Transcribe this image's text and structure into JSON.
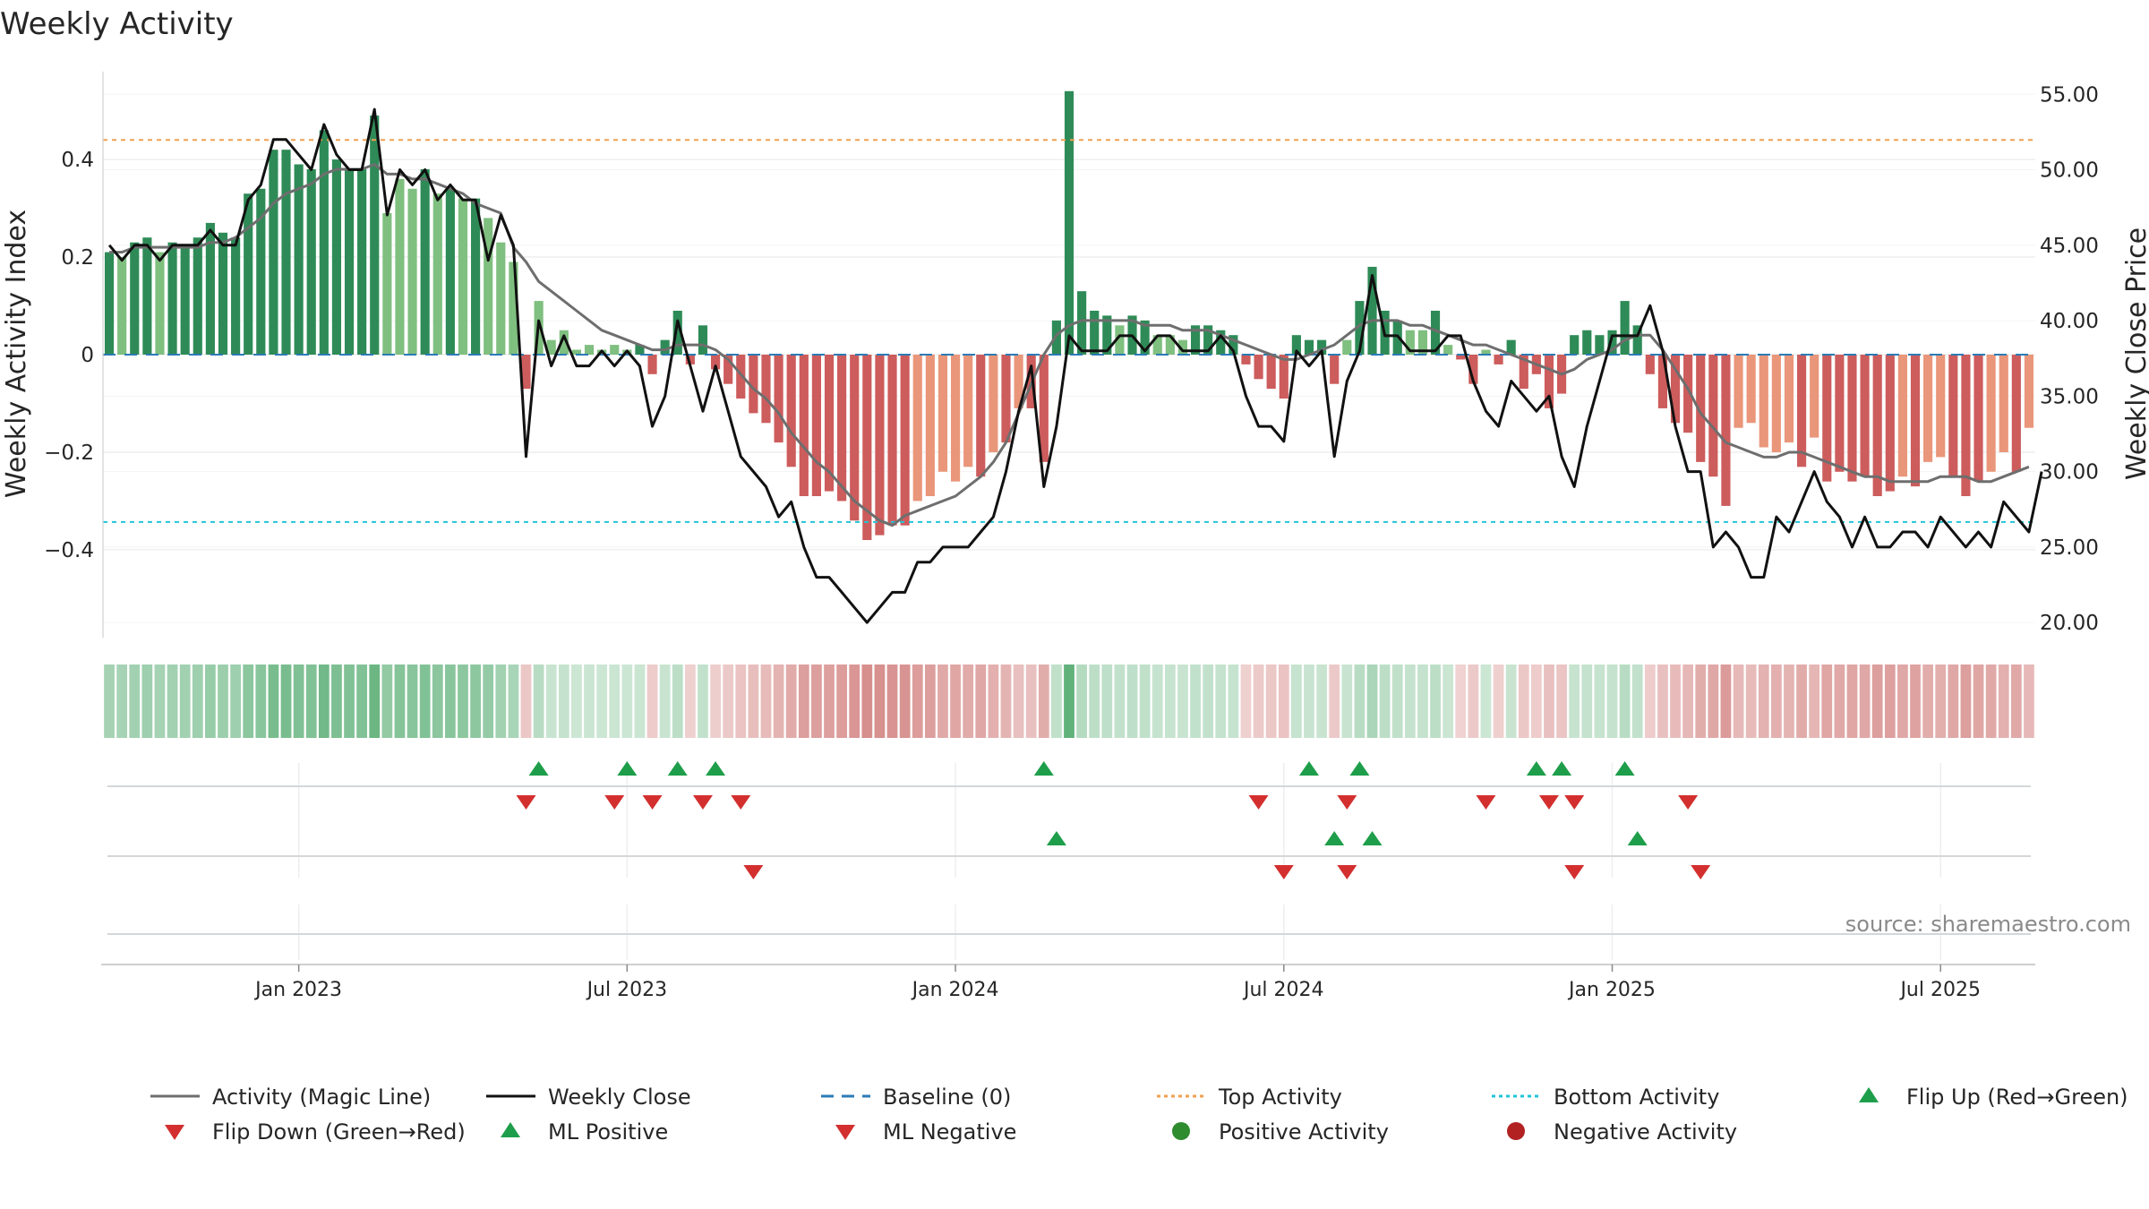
{
  "chart_data": {
    "type": "bar",
    "title": "Weekly Activity",
    "ylabel_left": "Weekly Activity Index",
    "ylabel_right": "Weekly Close Price",
    "source": "source: sharemaestro.com",
    "ylim_left": [
      -0.58,
      0.58
    ],
    "ylim_right": [
      19.0,
      56.5
    ],
    "left_ticks": [
      {
        "value": 0.4,
        "label": "0.4"
      },
      {
        "value": 0.2,
        "label": "0.2"
      },
      {
        "value": 0,
        "label": "0"
      },
      {
        "value": -0.2,
        "label": "−0.2"
      },
      {
        "value": -0.4,
        "label": "−0.4"
      }
    ],
    "right_ticks": [
      {
        "value": 55,
        "label": "55.00"
      },
      {
        "value": 50,
        "label": "50.00"
      },
      {
        "value": 45,
        "label": "45.00"
      },
      {
        "value": 40,
        "label": "40.00"
      },
      {
        "value": 35,
        "label": "35.00"
      },
      {
        "value": 30,
        "label": "30.00"
      },
      {
        "value": 25,
        "label": "25.00"
      },
      {
        "value": 20,
        "label": "20.00"
      }
    ],
    "x_ticks": [
      {
        "label": "Jan 2023",
        "week": 15
      },
      {
        "label": "Jul 2023",
        "week": 41
      },
      {
        "label": "Jan 2024",
        "week": 67
      },
      {
        "label": "Jul 2024",
        "week": 93
      },
      {
        "label": "Jan 2025",
        "week": 119
      },
      {
        "label": "Jul 2025",
        "week": 145
      }
    ],
    "top_activity": 0.44,
    "bottom_activity": -0.343,
    "baseline": 0,
    "activity": [
      0.21,
      0.2,
      0.23,
      0.24,
      0.21,
      0.23,
      0.22,
      0.24,
      0.27,
      0.25,
      0.24,
      0.33,
      0.34,
      0.42,
      0.42,
      0.39,
      0.38,
      0.46,
      0.4,
      0.38,
      0.38,
      0.49,
      0.29,
      0.36,
      0.34,
      0.38,
      0.33,
      0.34,
      0.32,
      0.32,
      0.28,
      0.23,
      0.19,
      -0.07,
      0.11,
      0.03,
      0.05,
      0.01,
      0.02,
      0.01,
      0.02,
      0.01,
      0.02,
      -0.04,
      0.03,
      0.09,
      -0.02,
      0.06,
      -0.03,
      -0.06,
      -0.09,
      -0.12,
      -0.14,
      -0.18,
      -0.23,
      -0.29,
      -0.29,
      -0.28,
      -0.3,
      -0.34,
      -0.38,
      -0.37,
      -0.35,
      -0.35,
      -0.3,
      -0.29,
      -0.24,
      -0.26,
      -0.23,
      -0.25,
      -0.2,
      -0.18,
      -0.11,
      -0.11,
      -0.22,
      0.07,
      0.54,
      0.13,
      0.09,
      0.08,
      0.06,
      0.08,
      0.07,
      0.04,
      0.04,
      0.03,
      0.06,
      0.06,
      0.05,
      0.04,
      -0.02,
      -0.05,
      -0.07,
      -0.09,
      0.04,
      0.03,
      0.03,
      -0.06,
      0.03,
      0.11,
      0.18,
      0.09,
      0.07,
      0.05,
      0.05,
      0.09,
      0.02,
      -0.01,
      -0.06,
      0.01,
      -0.02,
      0.03,
      -0.07,
      -0.04,
      -0.11,
      -0.08,
      0.04,
      0.05,
      0.04,
      0.05,
      0.11,
      0.06,
      -0.04,
      -0.11,
      -0.14,
      -0.16,
      -0.22,
      -0.25,
      -0.31,
      -0.15,
      -0.14,
      -0.19,
      -0.2,
      -0.18,
      -0.23,
      -0.17,
      -0.26,
      -0.24,
      -0.26,
      -0.25,
      -0.29,
      -0.28,
      -0.25,
      -0.27,
      -0.22,
      -0.21,
      -0.25,
      -0.29,
      -0.26,
      -0.24,
      -0.2,
      -0.24,
      -0.15
    ],
    "magic_line": [
      0.21,
      0.21,
      0.22,
      0.22,
      0.22,
      0.22,
      0.22,
      0.22,
      0.23,
      0.23,
      0.24,
      0.26,
      0.28,
      0.31,
      0.33,
      0.34,
      0.35,
      0.37,
      0.38,
      0.38,
      0.38,
      0.39,
      0.37,
      0.37,
      0.36,
      0.36,
      0.35,
      0.34,
      0.33,
      0.31,
      0.3,
      0.29,
      0.22,
      0.19,
      0.15,
      0.13,
      0.11,
      0.09,
      0.07,
      0.05,
      0.04,
      0.03,
      0.02,
      0.01,
      0.01,
      0.02,
      0.02,
      0.02,
      0.01,
      -0.01,
      -0.04,
      -0.07,
      -0.09,
      -0.12,
      -0.16,
      -0.19,
      -0.22,
      -0.24,
      -0.27,
      -0.3,
      -0.32,
      -0.34,
      -0.35,
      -0.33,
      -0.32,
      -0.31,
      -0.3,
      -0.29,
      -0.27,
      -0.25,
      -0.22,
      -0.18,
      -0.12,
      -0.06,
      0.0,
      0.04,
      0.06,
      0.07,
      0.07,
      0.07,
      0.07,
      0.07,
      0.06,
      0.06,
      0.06,
      0.05,
      0.05,
      0.05,
      0.04,
      0.03,
      0.02,
      0.01,
      0.0,
      -0.01,
      -0.01,
      0.0,
      0.01,
      0.02,
      0.04,
      0.06,
      0.07,
      0.07,
      0.07,
      0.06,
      0.06,
      0.05,
      0.04,
      0.03,
      0.02,
      0.02,
      0.01,
      0.0,
      -0.01,
      -0.02,
      -0.03,
      -0.04,
      -0.03,
      -0.01,
      0.0,
      0.01,
      0.03,
      0.04,
      0.04,
      0.01,
      -0.03,
      -0.07,
      -0.12,
      -0.15,
      -0.18,
      -0.19,
      -0.2,
      -0.21,
      -0.21,
      -0.2,
      -0.2,
      -0.21,
      -0.22,
      -0.23,
      -0.24,
      -0.25,
      -0.25,
      -0.26,
      -0.26,
      -0.26,
      -0.26,
      -0.25,
      -0.25,
      -0.25,
      -0.26,
      -0.26,
      -0.25,
      -0.24,
      -0.23
    ],
    "weekly_close": [
      45,
      44,
      45,
      45,
      44,
      45,
      45,
      45,
      46,
      45,
      45,
      48,
      49,
      52,
      52,
      51,
      50,
      53,
      51,
      50,
      50,
      54,
      47,
      50,
      49,
      50,
      48,
      49,
      48,
      48,
      44,
      47,
      45,
      31,
      40,
      37,
      39,
      37,
      37,
      38,
      37,
      38,
      37,
      33,
      35,
      40,
      37,
      34,
      37,
      34,
      31,
      30,
      29,
      27,
      28,
      25,
      23,
      23,
      22,
      21,
      20,
      21,
      22,
      22,
      24,
      24,
      25,
      25,
      25,
      26,
      27,
      30,
      34,
      37,
      29,
      33,
      39,
      38,
      38,
      38,
      39,
      39,
      38,
      39,
      39,
      38,
      38,
      38,
      39,
      38,
      35,
      33,
      33,
      32,
      38,
      37,
      38,
      31,
      36,
      38,
      43,
      39,
      39,
      38,
      38,
      38,
      39,
      39,
      36,
      34,
      33,
      36,
      35,
      34,
      35,
      31,
      29,
      33,
      36,
      39,
      39,
      39,
      41,
      38,
      33,
      30,
      30,
      25,
      26,
      25,
      23,
      23,
      27,
      26,
      28,
      30,
      28,
      27,
      25,
      27,
      25,
      25,
      26,
      26,
      25,
      27,
      26,
      25,
      26,
      25,
      28,
      27,
      26,
      30
    ],
    "week_shade_alpha": [
      0.5,
      0.5,
      0.5,
      0.5,
      0.5,
      0.5,
      0.5,
      0.55,
      0.55,
      0.55,
      0.6,
      0.6,
      0.65,
      0.7,
      0.7,
      0.7,
      0.7,
      0.75,
      0.75,
      0.75,
      0.7,
      0.75,
      0.7,
      0.7,
      0.7,
      0.65,
      0.65,
      0.65,
      0.6,
      0.6,
      0.6,
      0.55,
      0.5
    ],
    "rows": [
      {
        "name": "flip",
        "up_weeks": [
          34,
          41,
          45,
          48,
          74,
          95,
          99,
          113,
          115,
          120
        ],
        "down_weeks": [
          33,
          40,
          43,
          47,
          50,
          91,
          98,
          109,
          114,
          116,
          125
        ]
      },
      {
        "name": "ml",
        "up_weeks": [
          75,
          97,
          100,
          121
        ],
        "down_weeks": [
          51,
          93,
          98,
          116,
          126
        ]
      },
      {
        "name": "activity-events",
        "up_weeks": [],
        "down_weeks": []
      }
    ],
    "legend": [
      {
        "kind": "line",
        "color": "#6e6e6e",
        "dash": "",
        "label": "Activity (Magic Line)"
      },
      {
        "kind": "line",
        "color": "#111111",
        "dash": "",
        "label": "Weekly Close"
      },
      {
        "kind": "line",
        "color": "#2c7bb6",
        "dash": "dashed",
        "label": "Baseline (0)"
      },
      {
        "kind": "line",
        "color": "#f0a050",
        "dash": "dotted",
        "label": "Top Activity"
      },
      {
        "kind": "line",
        "color": "#22c4d8",
        "dash": "dotted",
        "label": "Bottom Activity"
      },
      {
        "kind": "tri-up",
        "color": "#1e9e4a",
        "dash": "",
        "label": "Flip Up (Red→Green)"
      },
      {
        "kind": "tri-down",
        "color": "#d32f2f",
        "dash": "",
        "label": "Flip Down (Green→Red)"
      },
      {
        "kind": "tri-up",
        "color": "#1e9e4a",
        "dash": "",
        "label": "ML Positive"
      },
      {
        "kind": "tri-down",
        "color": "#d32f2f",
        "dash": "",
        "label": "ML Negative"
      },
      {
        "kind": "dot",
        "color": "#2e8b2e",
        "dash": "",
        "label": "Positive Activity"
      },
      {
        "kind": "dot",
        "color": "#b22222",
        "dash": "",
        "label": "Negative Activity"
      }
    ],
    "colors": {
      "pos_strong": "#2e8b57",
      "pos_light": "#7fbf7f",
      "neg_strong": "#cd5c5c",
      "neg_light": "#e9967a",
      "strip_pos": "#3a9e5a",
      "strip_neg": "#c0504d",
      "magic_line": "#6e6e6e",
      "close_line": "#111111",
      "baseline": "#2c7bb6",
      "top": "#f0a050",
      "bottom": "#22c4d8",
      "up_marker": "#1e9e4a",
      "down_marker": "#d32f2f",
      "grid": "#e6e6e6",
      "row_line": "#d3d7da"
    }
  }
}
